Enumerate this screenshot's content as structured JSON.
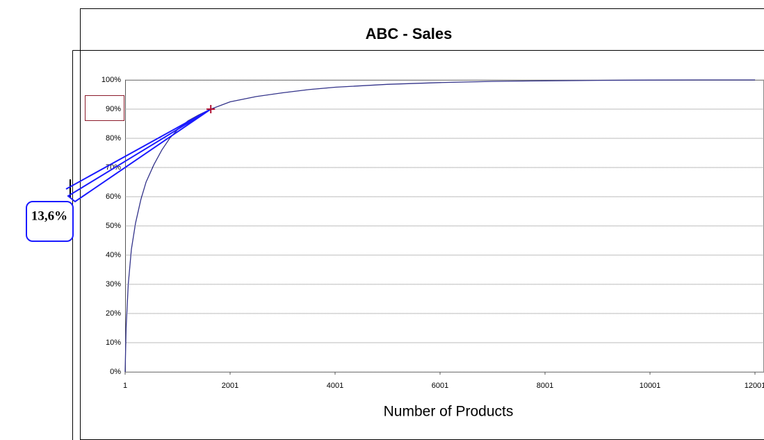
{
  "chart_data": {
    "type": "line",
    "title": "ABC - Sales",
    "x_label": "Number of Products",
    "x": [
      1,
      20,
      60,
      120,
      200,
      300,
      400,
      550,
      700,
      850,
      1000,
      1200,
      1400,
      1633,
      2001,
      2500,
      3001,
      3500,
      4001,
      5001,
      6001,
      7001,
      8001,
      9001,
      10001,
      11001,
      12001
    ],
    "values": [
      0,
      15,
      30,
      42,
      51,
      59,
      65,
      71,
      76,
      80,
      83,
      86,
      88,
      90,
      92.5,
      94.3,
      95.6,
      96.7,
      97.5,
      98.5,
      99.1,
      99.5,
      99.7,
      99.85,
      99.95,
      100,
      100
    ],
    "color": "#33338a",
    "xlim": [
      1,
      12001
    ],
    "xticks": [
      1,
      2001,
      4001,
      6001,
      8001,
      10001,
      12001
    ],
    "ylim": [
      0,
      100
    ],
    "yticks": [
      {
        "value": 0,
        "label": "0%"
      },
      {
        "value": 10,
        "label": "10%"
      },
      {
        "value": 20,
        "label": "20%"
      },
      {
        "value": 30,
        "label": "30%"
      },
      {
        "value": 40,
        "label": "40%"
      },
      {
        "value": 50,
        "label": "50%"
      },
      {
        "value": 60,
        "label": "60%"
      },
      {
        "value": 70,
        "label": "70%"
      },
      {
        "value": 80,
        "label": "80%"
      },
      {
        "value": 90,
        "label": "90%"
      },
      {
        "value": 100,
        "label": "100%"
      }
    ],
    "grid": true,
    "highlight": {
      "x": 1633,
      "y": 90,
      "color": "#b01030"
    },
    "annotation": {
      "text": "13,6%",
      "x": 1633,
      "y": 90,
      "color": "#1a1aff"
    }
  }
}
